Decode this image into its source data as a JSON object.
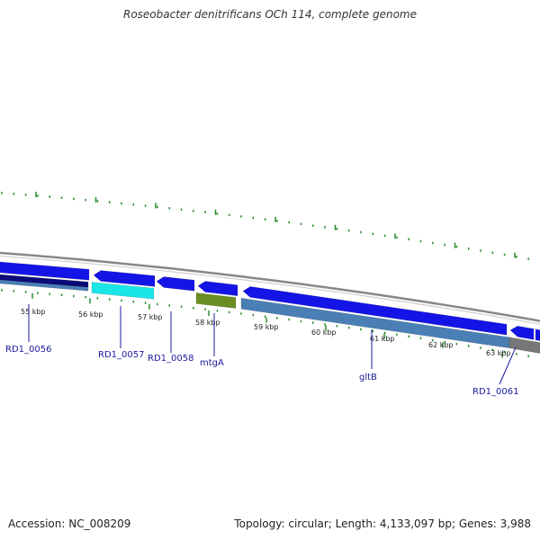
{
  "title": "Roseobacter denitrificans OCh 114, complete genome",
  "footer": {
    "accession": "Accession: NC_008209",
    "summary": "Topology: circular; Length: 4,133,097 bp; Genes: 3,988"
  },
  "colors": {
    "background": "#ffffff",
    "tick_green": "#2a8a2a",
    "backbone_gray": "#888888",
    "cds_blue": "#1414e6",
    "cds_navy": "#0a0a78",
    "cds_cyan": "#19e6e6",
    "cds_olive": "#6b8e23",
    "cds_steel": "#4a7fb5",
    "cds_gray": "#777777",
    "label_blue": "#1a1aa0"
  },
  "scale_labels": [
    "55 kbp",
    "56 kbp",
    "57 kbp",
    "58 kbp",
    "59 kbp",
    "60 kbp",
    "61 kbp",
    "62 kbp",
    "63 kbp"
  ],
  "gene_labels": [
    "RD1_0056",
    "RD1_0057",
    "RD1_0058",
    "mtgA",
    "gltB",
    "RD1_0061"
  ]
}
